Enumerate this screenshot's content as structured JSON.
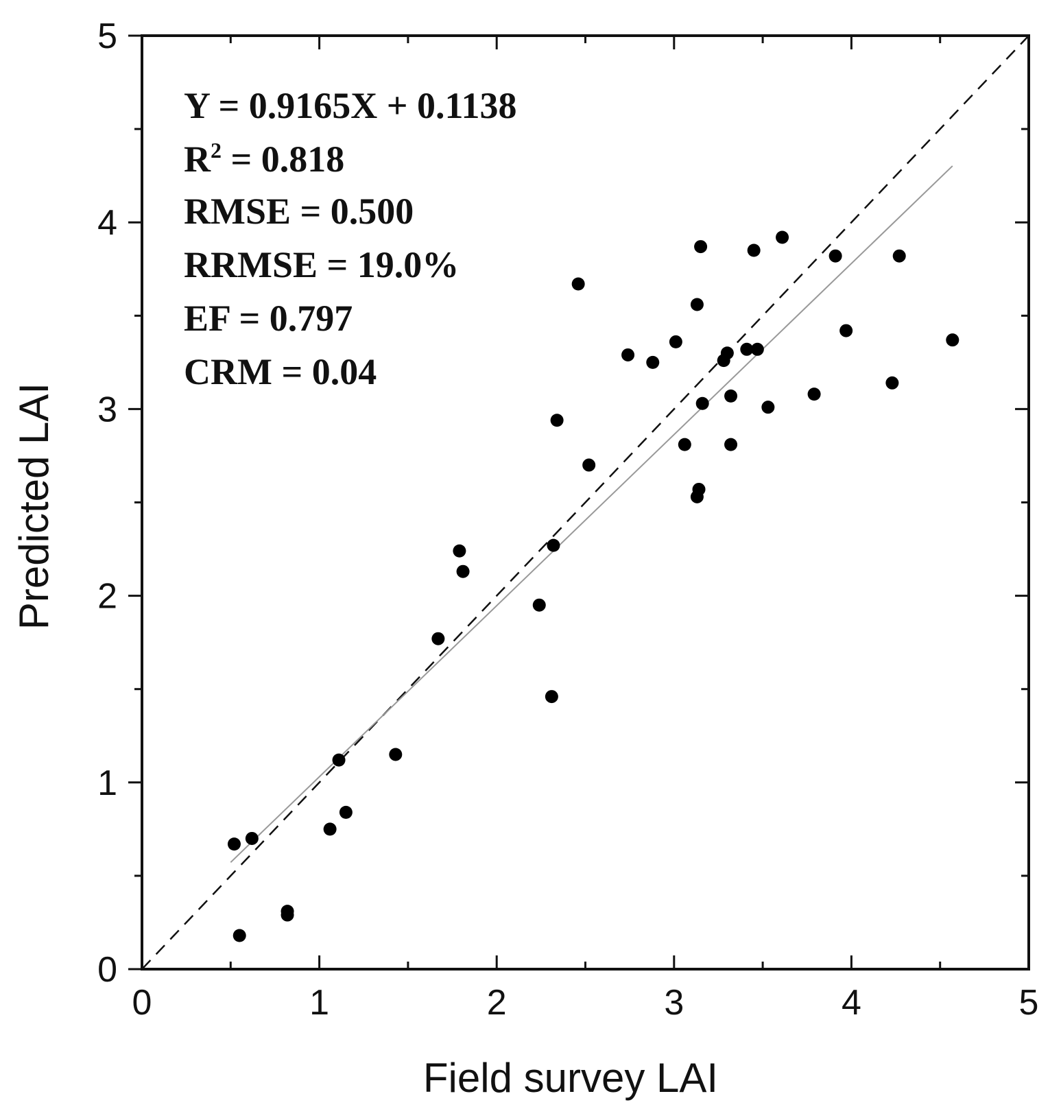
{
  "chart_data": {
    "type": "scatter",
    "xlabel": "Field survey LAI",
    "ylabel": "Predicted LAI",
    "xlim": [
      0,
      5
    ],
    "ylim": [
      0,
      5
    ],
    "xticks": [
      "0",
      "1",
      "2",
      "3",
      "4",
      "5"
    ],
    "yticks": [
      "0",
      "1",
      "2",
      "3",
      "4",
      "5"
    ],
    "minor_ticks": true,
    "grid": false,
    "annotations": {
      "equation": "Y = 0.9165X + 0.1138",
      "r2_prefix": "R",
      "r2_sup": "2",
      "r2_value": " = 0.818",
      "rmse": "RMSE = 0.500",
      "rrmse": "RRMSE = 19.0%",
      "ef": "EF = 0.797",
      "crm": "CRM = 0.04"
    },
    "lines": [
      {
        "kind": "1:1",
        "style": "dashed",
        "color": "#111111",
        "x": [
          0,
          5
        ],
        "y": [
          0,
          5
        ]
      },
      {
        "kind": "fit",
        "style": "solid",
        "color": "#999999",
        "slope": 0.9165,
        "intercept": 0.1138,
        "x": [
          0.5,
          4.57
        ]
      }
    ],
    "points": [
      {
        "x": 0.52,
        "y": 0.67
      },
      {
        "x": 0.62,
        "y": 0.7
      },
      {
        "x": 0.55,
        "y": 0.18
      },
      {
        "x": 0.82,
        "y": 0.31
      },
      {
        "x": 0.82,
        "y": 0.29
      },
      {
        "x": 1.06,
        "y": 0.75
      },
      {
        "x": 1.15,
        "y": 0.84
      },
      {
        "x": 1.11,
        "y": 1.12
      },
      {
        "x": 1.43,
        "y": 1.15
      },
      {
        "x": 1.67,
        "y": 1.77
      },
      {
        "x": 1.79,
        "y": 2.24
      },
      {
        "x": 1.81,
        "y": 2.13
      },
      {
        "x": 2.24,
        "y": 1.95
      },
      {
        "x": 2.31,
        "y": 1.46
      },
      {
        "x": 2.32,
        "y": 2.27
      },
      {
        "x": 2.34,
        "y": 2.94
      },
      {
        "x": 2.46,
        "y": 3.67
      },
      {
        "x": 2.52,
        "y": 2.7
      },
      {
        "x": 2.74,
        "y": 3.29
      },
      {
        "x": 2.88,
        "y": 3.25
      },
      {
        "x": 3.01,
        "y": 3.36
      },
      {
        "x": 3.06,
        "y": 2.81
      },
      {
        "x": 3.13,
        "y": 3.56
      },
      {
        "x": 3.14,
        "y": 2.57
      },
      {
        "x": 3.13,
        "y": 2.53
      },
      {
        "x": 3.15,
        "y": 3.87
      },
      {
        "x": 3.16,
        "y": 3.03
      },
      {
        "x": 3.28,
        "y": 3.26
      },
      {
        "x": 3.3,
        "y": 3.3
      },
      {
        "x": 3.32,
        "y": 3.07
      },
      {
        "x": 3.32,
        "y": 2.81
      },
      {
        "x": 3.41,
        "y": 3.32
      },
      {
        "x": 3.45,
        "y": 3.85
      },
      {
        "x": 3.47,
        "y": 3.32
      },
      {
        "x": 3.53,
        "y": 3.01
      },
      {
        "x": 3.61,
        "y": 3.92
      },
      {
        "x": 3.79,
        "y": 3.08
      },
      {
        "x": 3.91,
        "y": 3.82
      },
      {
        "x": 3.97,
        "y": 3.42
      },
      {
        "x": 4.23,
        "y": 3.14
      },
      {
        "x": 4.27,
        "y": 3.82
      },
      {
        "x": 4.57,
        "y": 3.37
      }
    ],
    "marker_color": "#000000"
  }
}
